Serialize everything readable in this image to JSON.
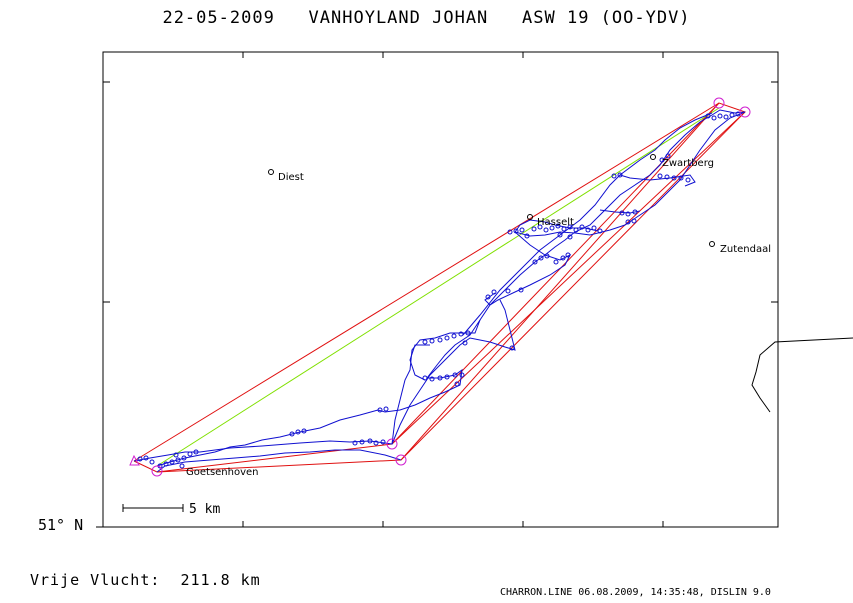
{
  "header": {
    "date": "22-05-2009",
    "pilot": "VANHOYLAND JOHAN",
    "glider": "ASW 19 (OO-YDV)"
  },
  "map": {
    "latitude_label": "51° N",
    "scale_label": "5 km",
    "places": [
      {
        "name": "Diest"
      },
      {
        "name": "Hasselt"
      },
      {
        "name": "Zwartberg"
      },
      {
        "name": "Zutendaal"
      },
      {
        "name": "Goetsenhoven"
      }
    ],
    "colors": {
      "track": "#1010d0",
      "task_lines": "#e01010",
      "free_flight_line": "#80e000",
      "turnpoints": "#d020d0"
    }
  },
  "footer": {
    "distance_label": "Vrije Vlucht:",
    "distance_value": "211.8 km",
    "credits": "CHARRON.LINE 06.08.2009, 14:35:48, DISLIN 9.0"
  }
}
